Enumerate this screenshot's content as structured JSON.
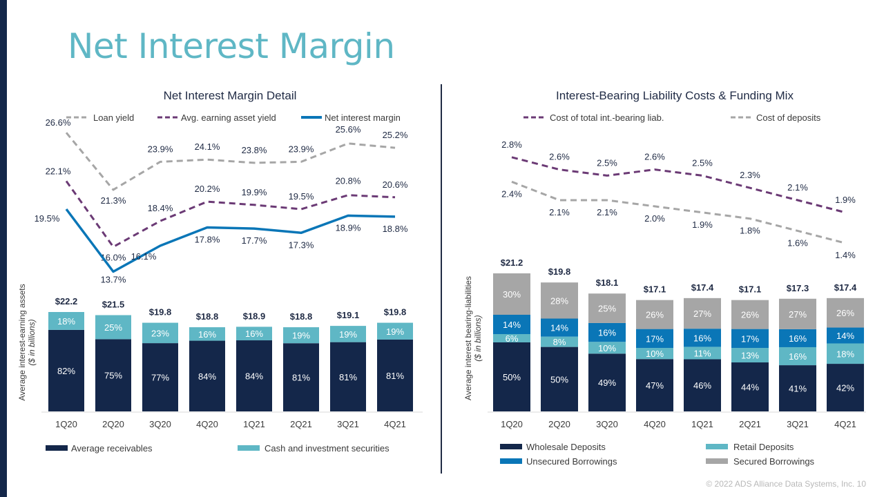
{
  "page": {
    "title": "Net Interest Margin",
    "footer": "© 2022 ADS Alliance Data Systems, Inc.  10"
  },
  "colors": {
    "side_bar": "#14274a",
    "title": "#5fb7c5",
    "navy": "#14274a",
    "teal": "#5fb7c5",
    "blue": "#0a76b7",
    "gray": "#a6a6a6",
    "purple": "#6b3a75",
    "text": "#1f2a44"
  },
  "chart_data": [
    {
      "id": "nim",
      "type": "bar",
      "title": "Net Interest Margin Detail",
      "categories": [
        "1Q20",
        "2Q20",
        "3Q20",
        "4Q20",
        "1Q21",
        "2Q21",
        "3Q21",
        "4Q21"
      ],
      "ylabel": "Average  interest-earning  assets",
      "ylabel_sub": "($ in billions)",
      "totals": [
        "$22.2",
        "$21.5",
        "$19.8",
        "$18.8",
        "$18.9",
        "$18.8",
        "$19.1",
        "$19.8"
      ],
      "total_values": [
        22.2,
        21.5,
        19.8,
        18.8,
        18.9,
        18.8,
        19.1,
        19.8
      ],
      "series": [
        {
          "name": "Average receivables",
          "color": "#14274a",
          "values": [
            82,
            75,
            77,
            84,
            84,
            81,
            81,
            81
          ]
        },
        {
          "name": "Cash and investment securities",
          "color": "#5fb7c5",
          "values": [
            18,
            25,
            23,
            16,
            16,
            19,
            19,
            19
          ]
        }
      ],
      "lines": [
        {
          "name": "Loan yield",
          "style": "dashed",
          "color": "#a6a6a6",
          "values": [
            26.6,
            21.3,
            23.9,
            24.1,
            23.8,
            23.9,
            25.6,
            25.2
          ]
        },
        {
          "name": "Avg. earning asset yield",
          "style": "dashed",
          "color": "#6b3a75",
          "values": [
            22.1,
            16.0,
            18.4,
            20.2,
            19.9,
            19.5,
            20.8,
            20.6
          ]
        },
        {
          "name": "Net interest margin",
          "style": "solid",
          "color": "#0a76b7",
          "values": [
            19.5,
            13.7,
            16.1,
            17.8,
            17.7,
            17.3,
            18.9,
            18.8
          ]
        }
      ],
      "line_unit": "%",
      "legend_position": "top"
    },
    {
      "id": "funding",
      "type": "bar",
      "title": "Interest-Bearing Liability Costs & Funding Mix",
      "categories": [
        "1Q20",
        "2Q20",
        "3Q20",
        "4Q20",
        "1Q21",
        "2Q21",
        "3Q21",
        "4Q21"
      ],
      "ylabel": "Average  interest bearing-liabilities",
      "ylabel_sub": "($ in billions)",
      "totals": [
        "$21.2",
        "$19.8",
        "$18.1",
        "$17.1",
        "$17.4",
        "$17.1",
        "$17.3",
        "$17.4"
      ],
      "total_values": [
        21.2,
        19.8,
        18.1,
        17.1,
        17.4,
        17.1,
        17.3,
        17.4
      ],
      "series": [
        {
          "name": "Wholesale Deposits",
          "color": "#14274a",
          "values": [
            50,
            50,
            49,
            47,
            46,
            44,
            41,
            42
          ]
        },
        {
          "name": "Retail Deposits",
          "color": "#5fb7c5",
          "values": [
            6,
            8,
            10,
            10,
            11,
            13,
            16,
            18
          ]
        },
        {
          "name": "Unsecured Borrowings",
          "color": "#0a76b7",
          "values": [
            14,
            14,
            16,
            17,
            16,
            17,
            16,
            14
          ]
        },
        {
          "name": "Secured Borrowings",
          "color": "#a6a6a6",
          "values": [
            30,
            28,
            25,
            26,
            27,
            26,
            27,
            26
          ]
        }
      ],
      "lines": [
        {
          "name": "Cost of total int.-bearing liab.",
          "style": "dashed",
          "color": "#6b3a75",
          "values": [
            2.8,
            2.6,
            2.5,
            2.6,
            2.5,
            2.3,
            2.1,
            1.9
          ]
        },
        {
          "name": "Cost of deposits",
          "style": "dashed",
          "color": "#a6a6a6",
          "values": [
            2.4,
            2.1,
            2.1,
            2.0,
            1.9,
            1.8,
            1.6,
            1.4
          ]
        }
      ],
      "line_unit": "%",
      "legend_position": "top / bottom"
    }
  ]
}
